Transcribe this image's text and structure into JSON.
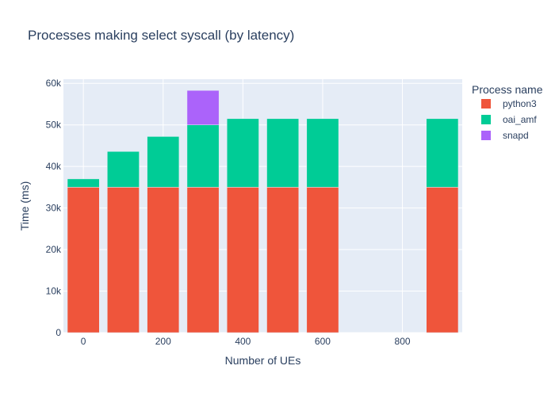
{
  "chart_data": {
    "type": "bar",
    "barmode": "stack",
    "title": "Processes making select syscall (by latency)",
    "xlabel": "Number of UEs",
    "ylabel": "Time (ms)",
    "legend_title": "Process name",
    "legend_position": "right",
    "grid": true,
    "xlim": [
      -50,
      950
    ],
    "ylim": [
      0,
      61000
    ],
    "xticks": [
      0,
      200,
      400,
      600,
      800
    ],
    "xtick_labels": [
      "0",
      "200",
      "400",
      "600",
      "800"
    ],
    "yticks": [
      0,
      10000,
      20000,
      30000,
      40000,
      50000,
      60000
    ],
    "ytick_labels": [
      "0",
      "10k",
      "20k",
      "30k",
      "40k",
      "50k",
      "60k"
    ],
    "x": [
      0,
      100,
      200,
      300,
      400,
      500,
      600,
      900
    ],
    "bar_width": 80,
    "series": [
      {
        "name": "python3",
        "color": "#EF553B",
        "values": [
          35000,
          35000,
          35000,
          35000,
          35000,
          35000,
          35000,
          35000
        ]
      },
      {
        "name": "oai_amf",
        "color": "#00CC96",
        "values": [
          2000,
          8600,
          12200,
          15000,
          16500,
          16500,
          16500,
          16500
        ]
      },
      {
        "name": "snapd",
        "color": "#AB63FA",
        "values": [
          0,
          0,
          0,
          8300,
          0,
          0,
          0,
          0
        ]
      }
    ]
  }
}
